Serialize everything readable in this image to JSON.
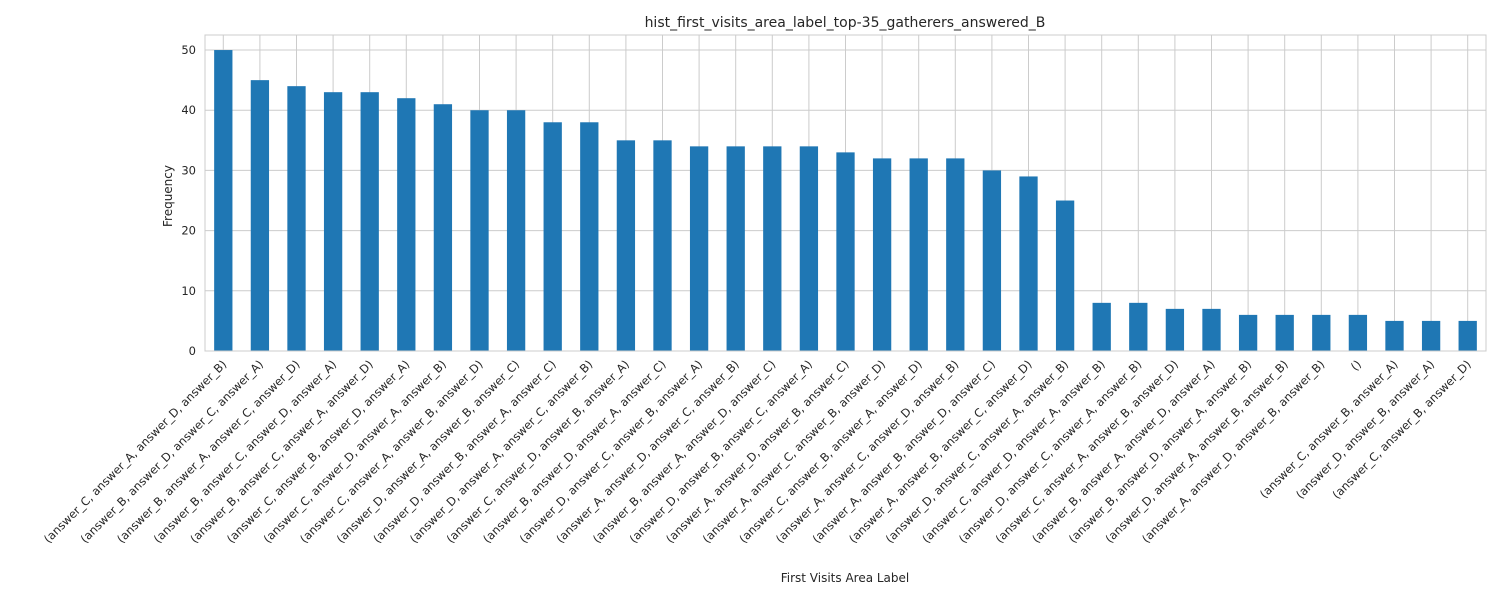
{
  "chart_data": {
    "type": "bar",
    "title": "hist_first_visits_area_label_top-35_gatherers_answered_B",
    "xlabel": "First Visits Area Label",
    "ylabel": "Frequency",
    "ylim": [
      0,
      52.5
    ],
    "yticks": [
      0,
      10,
      20,
      30,
      40,
      50
    ],
    "grid": true,
    "bar_color": "#1f77b4",
    "categories": [
      "(answer_C, answer_A, answer_D, answer_B)",
      "(answer_B, answer_D, answer_C, answer_A)",
      "(answer_B, answer_A, answer_C, answer_D)",
      "(answer_B, answer_C, answer_D, answer_A)",
      "(answer_B, answer_C, answer_A, answer_D)",
      "(answer_C, answer_B, answer_D, answer_A)",
      "(answer_C, answer_D, answer_A, answer_B)",
      "(answer_C, answer_A, answer_B, answer_D)",
      "(answer_D, answer_A, answer_B, answer_C)",
      "(answer_D, answer_B, answer_A, answer_C)",
      "(answer_D, answer_A, answer_C, answer_B)",
      "(answer_C, answer_D, answer_B, answer_A)",
      "(answer_B, answer_D, answer_A, answer_C)",
      "(answer_D, answer_C, answer_B, answer_A)",
      "(answer_A, answer_D, answer_C, answer_B)",
      "(answer_B, answer_A, answer_D, answer_C)",
      "(answer_D, answer_B, answer_C, answer_A)",
      "(answer_A, answer_D, answer_B, answer_C)",
      "(answer_A, answer_C, answer_B, answer_D)",
      "(answer_C, answer_B, answer_A, answer_D)",
      "(answer_A, answer_C, answer_D, answer_B)",
      "(answer_A, answer_B, answer_D, answer_C)",
      "(answer_A, answer_B, answer_C, answer_D)",
      "(answer_D, answer_C, answer_A, answer_B)",
      "(answer_C, answer_D, answer_A, answer_B)",
      "(answer_D, answer_C, answer_A, answer_B)",
      "(answer_C, answer_A, answer_B, answer_D)",
      "(answer_B, answer_A, answer_D, answer_A)",
      "(answer_B, answer_D, answer_A, answer_B)",
      "(answer_D, answer_A, answer_B, answer_B)",
      "(answer_A, answer_D, answer_B, answer_B)",
      "()",
      "(answer_C, answer_B, answer_A)",
      "(answer_D, answer_B, answer_A)",
      "(answer_C, answer_B, answer_D)"
    ],
    "values": [
      50,
      45,
      44,
      43,
      43,
      42,
      41,
      40,
      40,
      38,
      38,
      35,
      35,
      34,
      34,
      34,
      34,
      33,
      32,
      32,
      32,
      30,
      29,
      25,
      8,
      8,
      7,
      7,
      6,
      6,
      6,
      6,
      5,
      5,
      5
    ]
  }
}
